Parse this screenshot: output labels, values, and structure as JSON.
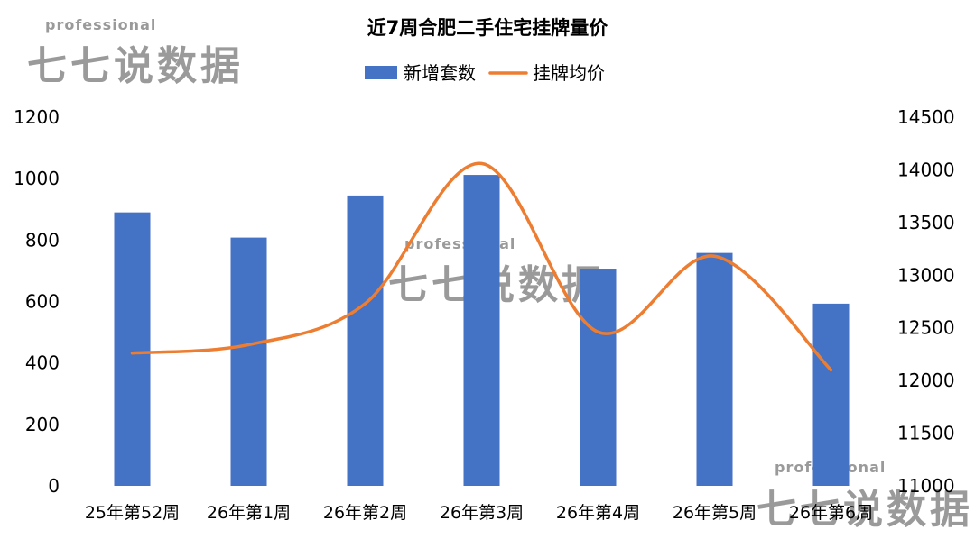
{
  "chart_data": {
    "type": "bar+line",
    "title": "近7周合肥二手住宅挂牌量价",
    "categories": [
      "25年第52周",
      "26年第1周",
      "26年第2周",
      "26年第3周",
      "26年第4周",
      "26年第5周",
      "26年第6周"
    ],
    "series": [
      {
        "name": "新增套数",
        "type": "bar",
        "axis": "left",
        "color": "#4472C4",
        "values": [
          890,
          808,
          945,
          1012,
          707,
          758,
          593
        ]
      },
      {
        "name": "挂牌均价",
        "type": "line",
        "axis": "right",
        "color": "#ED7D31",
        "smooth": true,
        "values": [
          12260,
          12340,
          12730,
          14060,
          12460,
          13180,
          12100
        ]
      }
    ],
    "y_left": {
      "min": 0,
      "max": 1200,
      "step": 200,
      "ticks": [
        "0",
        "200",
        "400",
        "600",
        "800",
        "1000",
        "1200"
      ]
    },
    "y_right": {
      "min": 11000,
      "max": 14500,
      "step": 500,
      "ticks": [
        "11000",
        "11500",
        "12000",
        "12500",
        "13000",
        "13500",
        "14000",
        "14500"
      ]
    },
    "grid": false,
    "legend_position": "top-center"
  },
  "watermark": {
    "tagline": "professional",
    "brand": "七七说数据"
  }
}
